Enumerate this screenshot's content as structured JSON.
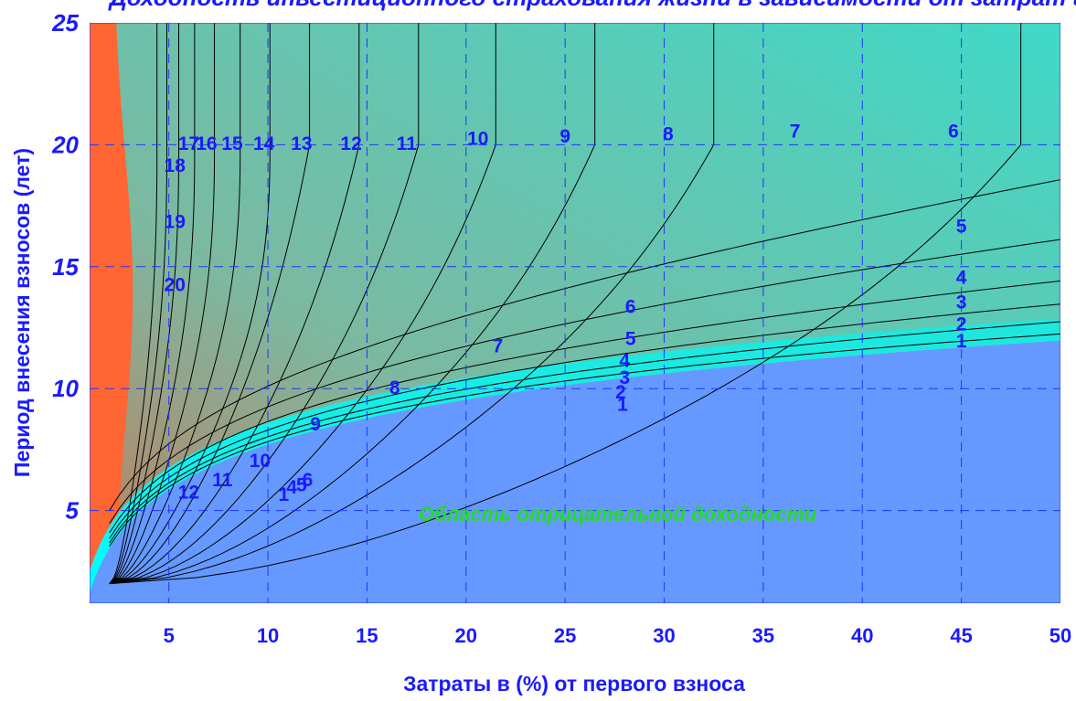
{
  "chart_data": {
    "type": "contour",
    "title": "Доходность инвестиционного страхования жизни в зависимости от затрат и срока",
    "xlabel": "Затраты в (%) от первого взноса",
    "ylabel": "Период внесения взносов (лет)",
    "xlim": [
      1,
      50
    ],
    "ylim": [
      1.2,
      25
    ],
    "x_ticks": [
      5,
      10,
      15,
      20,
      25,
      30,
      35,
      40,
      45,
      50
    ],
    "y_ticks": [
      5,
      10,
      15,
      20,
      25
    ],
    "grid": true,
    "region_label": "Область отрицательной доходности",
    "region_color": "#6699ff",
    "colormap": [
      "#00ffff",
      "#5fbfb0",
      "#9a9a80",
      "#ff6633"
    ],
    "levels": [
      1,
      2,
      3,
      4,
      5,
      6,
      7,
      8,
      9,
      10,
      11,
      12,
      13,
      14,
      15,
      16,
      17,
      18,
      19,
      20
    ],
    "contour_labels": [
      {
        "text": "1",
        "x": 27.9,
        "y": 9.3
      },
      {
        "text": "2",
        "x": 27.8,
        "y": 9.8
      },
      {
        "text": "3",
        "x": 28.0,
        "y": 10.4
      },
      {
        "text": "4",
        "x": 28.0,
        "y": 11.1
      },
      {
        "text": "5",
        "x": 28.3,
        "y": 12.0
      },
      {
        "text": "6",
        "x": 28.3,
        "y": 13.3
      },
      {
        "text": "7",
        "x": 21.6,
        "y": 11.7
      },
      {
        "text": "8",
        "x": 16.4,
        "y": 10.0
      },
      {
        "text": "9",
        "x": 12.4,
        "y": 8.5
      },
      {
        "text": "10",
        "x": 9.6,
        "y": 7.0
      },
      {
        "text": "11",
        "x": 7.7,
        "y": 6.2
      },
      {
        "text": "12",
        "x": 6.0,
        "y": 5.7
      },
      {
        "text": "1",
        "x": 45.0,
        "y": 11.9
      },
      {
        "text": "2",
        "x": 45.0,
        "y": 12.6
      },
      {
        "text": "3",
        "x": 45.0,
        "y": 13.5
      },
      {
        "text": "4",
        "x": 45.0,
        "y": 14.5
      },
      {
        "text": "5",
        "x": 45.0,
        "y": 16.6
      },
      {
        "text": "6",
        "x": 44.6,
        "y": 20.5
      },
      {
        "text": "7",
        "x": 36.6,
        "y": 20.5
      },
      {
        "text": "8",
        "x": 30.2,
        "y": 20.4
      },
      {
        "text": "9",
        "x": 25.0,
        "y": 20.3
      },
      {
        "text": "10",
        "x": 20.6,
        "y": 20.2
      },
      {
        "text": "11",
        "x": 17.0,
        "y": 20.0
      },
      {
        "text": "12",
        "x": 14.2,
        "y": 20.0
      },
      {
        "text": "13",
        "x": 11.7,
        "y": 20.0
      },
      {
        "text": "14",
        "x": 9.8,
        "y": 20.0
      },
      {
        "text": "15",
        "x": 8.2,
        "y": 20.0
      },
      {
        "text": "16",
        "x": 6.9,
        "y": 20.0
      },
      {
        "text": "17",
        "x": 6.0,
        "y": 20.0
      },
      {
        "text": "18",
        "x": 5.3,
        "y": 19.1
      },
      {
        "text": "19",
        "x": 5.3,
        "y": 16.8
      },
      {
        "text": "20",
        "x": 5.3,
        "y": 14.2
      },
      {
        "text": "6",
        "x": 12.0,
        "y": 6.2
      },
      {
        "text": "5",
        "x": 11.7,
        "y": 6.0
      },
      {
        "text": "4",
        "x": 11.2,
        "y": 5.9
      },
      {
        "text": "1",
        "x": 10.8,
        "y": 5.6
      }
    ]
  }
}
